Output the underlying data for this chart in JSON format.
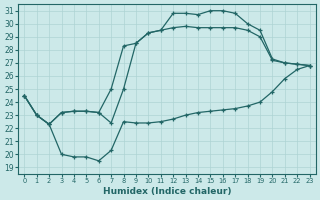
{
  "xlabel": "Humidex (Indice chaleur)",
  "xlim": [
    -0.5,
    23.5
  ],
  "ylim": [
    18.5,
    31.5
  ],
  "xticks": [
    0,
    1,
    2,
    3,
    4,
    5,
    6,
    7,
    8,
    9,
    10,
    11,
    12,
    13,
    14,
    15,
    16,
    17,
    18,
    19,
    20,
    21,
    22,
    23
  ],
  "yticks": [
    19,
    20,
    21,
    22,
    23,
    24,
    25,
    26,
    27,
    28,
    29,
    30,
    31
  ],
  "bg_color": "#cce9e9",
  "grid_color": "#aed4d4",
  "line_color": "#226666",
  "curve1_x": [
    0,
    1,
    2,
    3,
    4,
    5,
    6,
    7,
    8,
    9,
    10,
    11,
    12,
    13,
    14,
    15,
    16,
    17,
    18,
    19,
    20,
    21,
    22,
    23
  ],
  "curve1_y": [
    24.5,
    23.0,
    22.3,
    23.2,
    23.3,
    23.3,
    23.2,
    22.4,
    25.0,
    28.5,
    29.3,
    29.5,
    30.8,
    30.8,
    30.7,
    31.0,
    31.0,
    30.8,
    30.0,
    29.5,
    27.3,
    27.0,
    26.9,
    26.8
  ],
  "curve2_x": [
    0,
    1,
    2,
    3,
    4,
    5,
    6,
    7,
    8,
    9,
    10,
    11,
    12,
    13,
    14,
    15,
    16,
    17,
    18,
    19,
    20,
    21,
    22,
    23
  ],
  "curve2_y": [
    24.5,
    23.0,
    22.3,
    23.2,
    23.3,
    23.3,
    23.2,
    25.0,
    28.3,
    28.5,
    29.3,
    29.5,
    29.7,
    29.8,
    29.7,
    29.7,
    29.7,
    29.7,
    29.5,
    29.0,
    27.2,
    27.0,
    26.9,
    26.8
  ],
  "curve3_x": [
    0,
    1,
    2,
    3,
    4,
    5,
    6,
    7,
    8,
    9,
    10,
    11,
    12,
    13,
    14,
    15,
    16,
    17,
    18,
    19,
    20,
    21,
    22,
    23
  ],
  "curve3_y": [
    24.5,
    23.0,
    22.3,
    20.0,
    19.8,
    19.8,
    19.5,
    20.3,
    22.5,
    22.4,
    22.4,
    22.5,
    22.7,
    23.0,
    23.2,
    23.3,
    23.4,
    23.5,
    23.7,
    24.0,
    24.8,
    25.8,
    26.5,
    26.8
  ]
}
